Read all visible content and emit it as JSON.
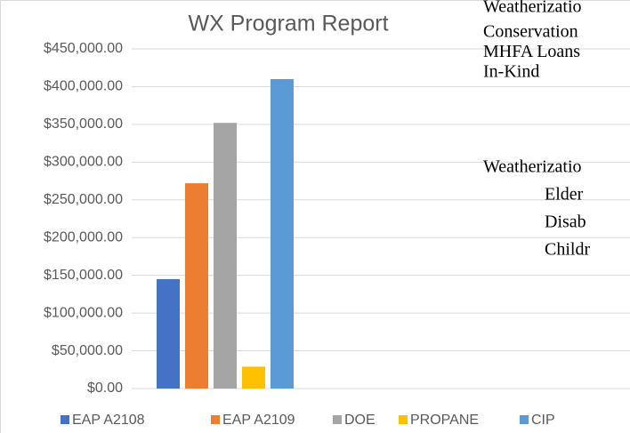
{
  "chart_data": {
    "type": "bar",
    "title": "WX Program Report",
    "categories": [
      null
    ],
    "series": [
      {
        "name": "EAP A2108",
        "color": "#4472c4",
        "values": [
          145000
        ]
      },
      {
        "name": "EAP A2109",
        "color": "#ed7d31",
        "values": [
          272000
        ]
      },
      {
        "name": "DOE",
        "color": "#a5a5a5",
        "values": [
          352000
        ]
      },
      {
        "name": "PROPANE",
        "color": "#ffc000",
        "values": [
          29000
        ]
      },
      {
        "name": "CIP",
        "color": "#5b9bd5",
        "values": [
          410000
        ]
      }
    ],
    "ylim": [
      0,
      450000
    ],
    "yticks": [
      {
        "value": 0,
        "label": "$0.00"
      },
      {
        "value": 50000,
        "label": "$50,000.00"
      },
      {
        "value": 100000,
        "label": "$100,000.00"
      },
      {
        "value": 150000,
        "label": "$150,000.00"
      },
      {
        "value": 200000,
        "label": "$200,000.00"
      },
      {
        "value": 250000,
        "label": "$250,000.00"
      },
      {
        "value": 300000,
        "label": "$300,000.00"
      },
      {
        "value": 350000,
        "label": "$350,000.00"
      },
      {
        "value": 400000,
        "label": "$400,000.00"
      },
      {
        "value": 450000,
        "label": "$450,000.00"
      }
    ],
    "grid": true,
    "legend": "bottom"
  },
  "document_text": {
    "lines": [
      "Weatherizatio",
      "Conservation",
      "MHFA Loans",
      "In-Kind"
    ],
    "section": "Weatherizatio",
    "sublines": [
      "Elder",
      "Disab",
      "Childr"
    ]
  }
}
